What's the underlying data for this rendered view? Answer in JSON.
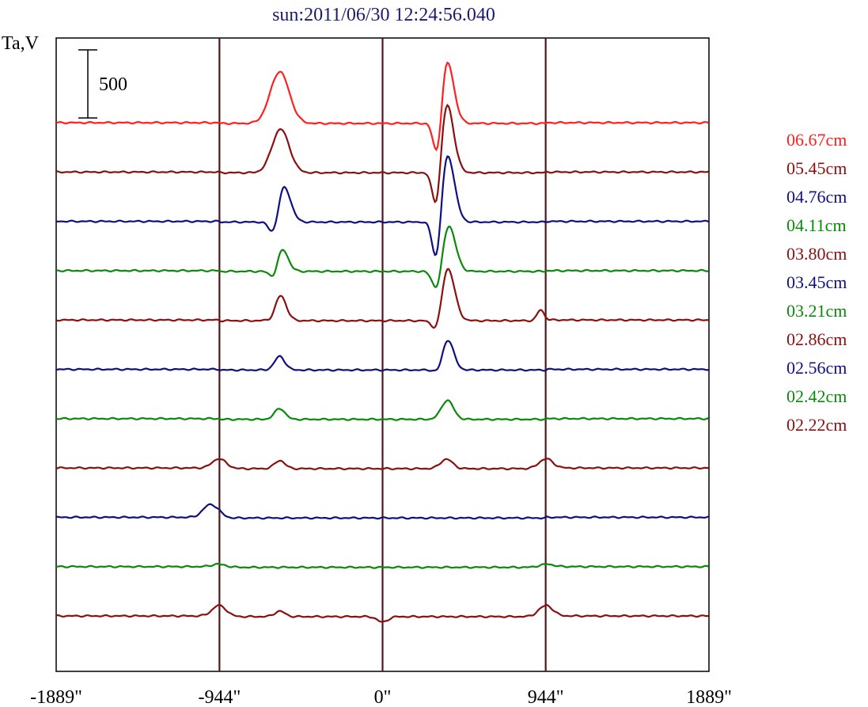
{
  "chart_data": {
    "type": "line",
    "title": "sun:2011/06/30 12:24:56.040",
    "ylabel": "Ta,V",
    "scale_bar_label": "500",
    "scale_bar_value": 500,
    "xlim": [
      -1889,
      1889
    ],
    "x_ticks": [
      {
        "value": -1889,
        "label": "-1889\""
      },
      {
        "value": -944,
        "label": "-944\""
      },
      {
        "value": 0,
        "label": "0\""
      },
      {
        "value": 944,
        "label": "944\""
      },
      {
        "value": 1889,
        "label": "1889\""
      }
    ],
    "vertical_lines": [
      -944,
      0,
      944
    ],
    "vertical_line_color": "#4a1a1a",
    "series": [
      {
        "name": "06.67cm",
        "color": "#ff2020",
        "peaks": [
          [
            -595,
            380,
            55
          ],
          [
            370,
            480,
            40
          ],
          [
            320,
            -380,
            25
          ]
        ]
      },
      {
        "name": "05.45cm",
        "color": "#8b1010",
        "peaks": [
          [
            -590,
            320,
            50
          ],
          [
            370,
            520,
            40
          ],
          [
            315,
            -380,
            25
          ]
        ]
      },
      {
        "name": "04.76cm",
        "color": "#101080",
        "peaks": [
          [
            -575,
            280,
            40
          ],
          [
            -625,
            -160,
            28
          ],
          [
            375,
            500,
            40
          ],
          [
            315,
            -380,
            25
          ]
        ]
      },
      {
        "name": "04.11cm",
        "color": "#0a8a0a",
        "peaks": [
          [
            -585,
            180,
            35
          ],
          [
            -625,
            -100,
            25
          ],
          [
            380,
            350,
            40
          ],
          [
            320,
            -200,
            28
          ]
        ]
      },
      {
        "name": "03.80cm",
        "color": "#8b1010",
        "peaks": [
          [
            -595,
            200,
            35
          ],
          [
            -630,
            -50,
            25
          ],
          [
            375,
            400,
            40
          ],
          [
            320,
            -150,
            28
          ],
          [
            915,
            80,
            20
          ]
        ]
      },
      {
        "name": "03.45cm",
        "color": "#101080",
        "peaks": [
          [
            -595,
            100,
            30
          ],
          [
            375,
            230,
            35
          ],
          [
            330,
            -60,
            25
          ]
        ]
      },
      {
        "name": "03.21cm",
        "color": "#0a8a0a",
        "peaks": [
          [
            -595,
            80,
            30
          ],
          [
            375,
            140,
            35
          ]
        ]
      },
      {
        "name": "02.86cm",
        "color": "#8b1010",
        "peaks": [
          [
            -595,
            60,
            30
          ],
          [
            370,
            70,
            35
          ],
          [
            -944,
            70,
            40
          ],
          [
            944,
            70,
            40
          ]
        ]
      },
      {
        "name": "02.56cm",
        "color": "#101080",
        "peaks": [
          [
            -1000,
            90,
            40
          ],
          [
            -944,
            20,
            30
          ]
        ]
      },
      {
        "name": "02.42cm",
        "color": "#0a8a0a",
        "peaks": [
          [
            -944,
            20,
            40
          ],
          [
            944,
            20,
            40
          ]
        ]
      },
      {
        "name": "02.22cm",
        "color": "#8b1010",
        "peaks": [
          [
            -944,
            80,
            40
          ],
          [
            944,
            80,
            40
          ],
          [
            -595,
            40,
            30
          ],
          [
            0,
            -40,
            30
          ]
        ]
      }
    ]
  }
}
